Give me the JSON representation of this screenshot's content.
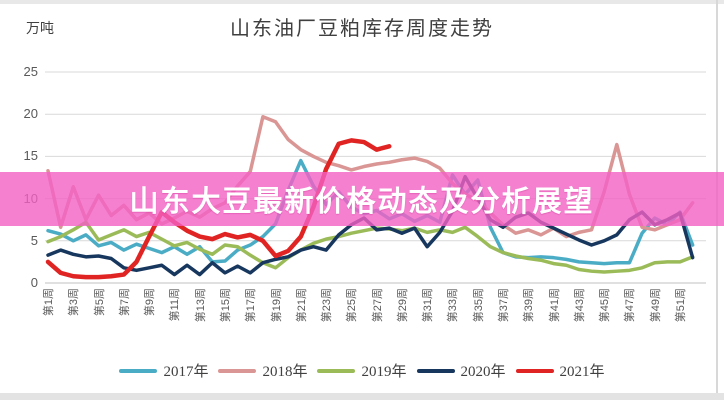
{
  "title": "山东油厂豆粕库存周度走势",
  "y_axis_unit": "万吨",
  "overlay_banner": {
    "text": "山东大豆最新价格动态及分析展望",
    "bg_color": "#f460c4",
    "text_color": "#ffffff"
  },
  "chart_data": {
    "type": "line",
    "title": "山东油厂豆粕库存周度走势",
    "ylabel": "万吨",
    "ylim": [
      0,
      25
    ],
    "yticks": [
      0,
      5,
      10,
      15,
      20,
      25
    ],
    "grid": true,
    "legend_position": "bottom",
    "x_unit": "week",
    "x_weeks_total": 52,
    "x_tick_labels": [
      "第1周",
      "第3周",
      "第5周",
      "第7周",
      "第9周",
      "第11周",
      "第13周",
      "第15周",
      "第17周",
      "第19周",
      "第21周",
      "第23周",
      "第25周",
      "第27周",
      "第29周",
      "第31周",
      "第33周",
      "第35周",
      "第37周",
      "第39周",
      "第41周",
      "第43周",
      "第45周",
      "第47周",
      "第49周",
      "第51周"
    ],
    "series": [
      {
        "name": "2017年",
        "color": "#4BACC6",
        "values": [
          6.2,
          5.8,
          5.0,
          5.7,
          4.4,
          4.8,
          3.9,
          4.6,
          4.1,
          3.6,
          4.3,
          3.4,
          4.3,
          2.5,
          2.6,
          3.9,
          4.5,
          5.5,
          7.0,
          11.0,
          14.5,
          11.5,
          9.3,
          10.8,
          9.0,
          8.2,
          8.6,
          7.6,
          8.2,
          7.3,
          8.0,
          7.2,
          12.8,
          10.5,
          12.2,
          6.6,
          3.6,
          3.1,
          3.0,
          3.1,
          3.0,
          2.8,
          2.5,
          2.4,
          2.3,
          2.4,
          2.4,
          5.9,
          7.7,
          6.9,
          8.4,
          4.5
        ]
      },
      {
        "name": "2018年",
        "color": "#D99694",
        "values": [
          13.3,
          6.6,
          11.4,
          7.5,
          10.4,
          8.0,
          9.2,
          7.5,
          8.3,
          7.0,
          7.7,
          8.5,
          7.8,
          8.8,
          9.5,
          11.5,
          13.2,
          19.7,
          19.1,
          17.0,
          15.8,
          15.0,
          14.3,
          13.9,
          13.4,
          13.8,
          14.1,
          14.3,
          14.6,
          14.8,
          14.4,
          13.6,
          11.8,
          10.5,
          9.8,
          8.3,
          6.9,
          5.9,
          6.3,
          5.7,
          6.5,
          5.5,
          6.0,
          6.3,
          10.8,
          16.4,
          10.5,
          6.6,
          6.3,
          6.9,
          7.5,
          9.5
        ]
      },
      {
        "name": "2019年",
        "color": "#9BBB59",
        "values": [
          4.9,
          5.5,
          6.3,
          7.2,
          5.1,
          5.7,
          6.3,
          5.5,
          6.0,
          5.2,
          4.4,
          4.8,
          4.0,
          3.4,
          4.5,
          4.3,
          3.3,
          2.4,
          1.8,
          3.0,
          3.9,
          4.7,
          5.2,
          5.5,
          5.9,
          6.2,
          6.5,
          6.4,
          6.2,
          6.5,
          6.0,
          6.3,
          6.0,
          6.6,
          5.5,
          4.3,
          3.6,
          3.2,
          2.9,
          2.7,
          2.3,
          2.1,
          1.6,
          1.4,
          1.3,
          1.4,
          1.5,
          1.8,
          2.4,
          2.5,
          2.5,
          3.1
        ]
      },
      {
        "name": "2020年",
        "color": "#17375E",
        "values": [
          3.3,
          3.9,
          3.4,
          3.1,
          3.2,
          2.9,
          1.8,
          1.5,
          1.8,
          2.1,
          1.0,
          2.1,
          1.0,
          2.4,
          1.2,
          2.0,
          1.2,
          2.4,
          2.8,
          3.1,
          3.9,
          4.3,
          3.9,
          5.7,
          6.9,
          7.7,
          6.3,
          6.5,
          5.9,
          6.5,
          4.3,
          6.0,
          8.5,
          12.6,
          10.0,
          7.5,
          6.6,
          7.8,
          8.3,
          7.2,
          6.5,
          5.8,
          5.1,
          4.5,
          5.0,
          5.7,
          7.5,
          8.4,
          6.9,
          7.5,
          8.3,
          3.0
        ]
      },
      {
        "name": "2021年",
        "color": "#E02423",
        "values": [
          2.5,
          1.2,
          0.8,
          0.7,
          0.7,
          0.8,
          1.0,
          2.5,
          5.5,
          8.4,
          7.2,
          6.2,
          5.5,
          5.2,
          5.8,
          5.4,
          5.7,
          5.0,
          3.2,
          3.8,
          5.5,
          9.0,
          13.5,
          16.5,
          16.9,
          16.7,
          15.8,
          16.2
        ]
      }
    ]
  }
}
